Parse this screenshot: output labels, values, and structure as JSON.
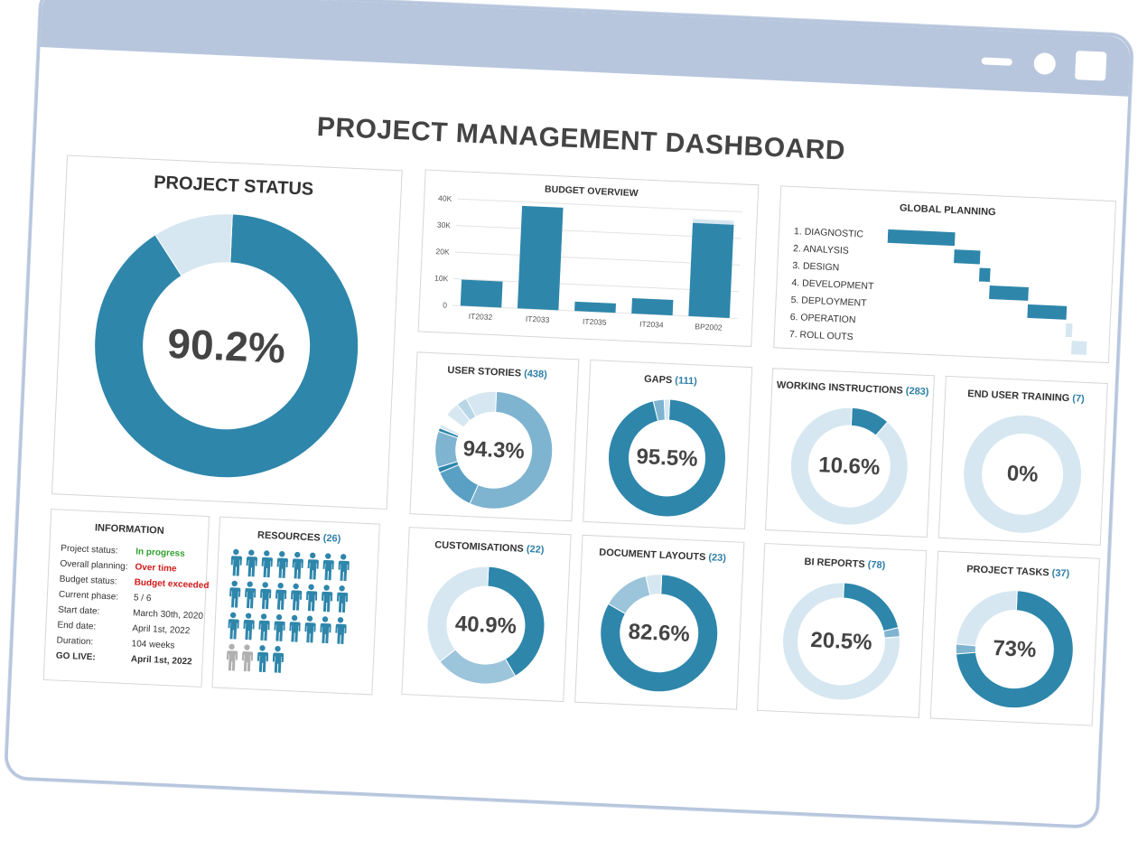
{
  "title": "PROJECT MANAGEMENT DASHBOARD",
  "window_controls": [
    "minimize-icon",
    "circle-icon",
    "maximize-icon"
  ],
  "colors": {
    "primary": "#2e86ab",
    "mid": "#7fb4d0",
    "light": "#d6e7f1",
    "grey": "#b0b0b0",
    "frame": "#b7c6dd"
  },
  "project_status": {
    "title": "PROJECT STATUS",
    "label": "90.2%"
  },
  "information": {
    "title": "INFORMATION",
    "rows": [
      {
        "label": "Project status:",
        "value": "In progress",
        "style": "ok"
      },
      {
        "label": "Overall planning:",
        "value": "Over time",
        "style": "bad"
      },
      {
        "label": "Budget status:",
        "value": "Budget exceeded",
        "style": "bad"
      },
      {
        "label": "Current phase:",
        "value": "5 / 6",
        "style": ""
      },
      {
        "label": "Start date:",
        "value": "March 30th, 2020",
        "style": ""
      },
      {
        "label": "End date:",
        "value": "April 1st, 2022",
        "style": ""
      },
      {
        "label": "Duration:",
        "value": "104 weeks",
        "style": ""
      },
      {
        "label": "GO LIVE:",
        "value": "April 1st, 2022",
        "style": "golive"
      }
    ]
  },
  "resources": {
    "title": "RESOURCES",
    "count": "(26)",
    "active": 24,
    "inactive": 2,
    "extra_active": 2
  },
  "global_planning": {
    "title": "GLOBAL PLANNING",
    "phases": [
      "1. DIAGNOSTIC",
      "2. ANALYSIS",
      "3. DESIGN",
      "4. DEVELOPMENT",
      "5. DEPLOYMENT",
      "6. OPERATION",
      "7. ROLL OUTS"
    ]
  },
  "chart_data": [
    {
      "id": "project_status",
      "type": "pie",
      "title": "PROJECT STATUS",
      "series": [
        {
          "values": [
            90.2,
            9.8
          ],
          "colors": [
            "#2e86ab",
            "#d6e7f1"
          ]
        }
      ],
      "center_label": "90.2%"
    },
    {
      "id": "budget",
      "type": "bar",
      "title": "BUDGET OVERVIEW",
      "categories": [
        "IT2032",
        "IT2033",
        "IT2035",
        "IT2034",
        "BP2002"
      ],
      "values": [
        9800,
        38500,
        3500,
        5800,
        35000
      ],
      "overlay_values": [
        0,
        0,
        0,
        0,
        36500
      ],
      "ylim": [
        0,
        40000
      ],
      "yticks": [
        0,
        10000,
        20000,
        30000,
        40000
      ],
      "ytick_labels": [
        "0",
        "10K",
        "20K",
        "30K",
        "40K"
      ],
      "grid": true
    },
    {
      "id": "gantt",
      "type": "bar",
      "title": "GLOBAL PLANNING",
      "categories": [
        "1. DIAGNOSTIC",
        "2. ANALYSIS",
        "3. DESIGN",
        "4. DEVELOPMENT",
        "5. DEPLOYMENT",
        "6. OPERATION",
        "7. ROLL OUTS"
      ],
      "start": [
        0,
        0.31,
        0.43,
        0.48,
        0.66,
        0.84,
        0.87
      ],
      "end": [
        0.31,
        0.43,
        0.48,
        0.66,
        0.84,
        0.87,
        0.94
      ],
      "light": [
        false,
        false,
        false,
        false,
        false,
        true,
        true
      ]
    },
    {
      "id": "user_stories",
      "type": "pie",
      "title": "USER STORIES",
      "count": "(438)",
      "center_label": "94.3%",
      "series": [
        {
          "values": [
            56,
            12,
            1.5,
            10,
            1,
            1,
            3,
            4,
            3,
            8.5
          ],
          "colors": [
            "#7fb4d0",
            "#5aa0c4",
            "#2e86ab",
            "#7fb4d0",
            "#2e86ab",
            "#d6e7f1",
            "#ffffff",
            "#d6e7f1",
            "#b9d6e6",
            "#d6e7f1"
          ]
        }
      ]
    },
    {
      "id": "gaps",
      "type": "pie",
      "title": "GAPS",
      "count": "(111)",
      "center_label": "95.5%",
      "series": [
        {
          "values": [
            95.5,
            3,
            1.5
          ],
          "colors": [
            "#2e86ab",
            "#7fb4d0",
            "#d6e7f1"
          ]
        }
      ]
    },
    {
      "id": "working_instructions",
      "type": "pie",
      "title": "WORKING INSTRUCTIONS",
      "count": "(283)",
      "center_label": "10.6%",
      "series": [
        {
          "values": [
            10.6,
            89.4
          ],
          "colors": [
            "#2e86ab",
            "#d6e7f1"
          ]
        }
      ]
    },
    {
      "id": "end_user_training",
      "type": "pie",
      "title": "END USER TRAINING",
      "count": "(7)",
      "center_label": "0%",
      "series": [
        {
          "values": [
            100
          ],
          "colors": [
            "#d6e7f1"
          ]
        }
      ]
    },
    {
      "id": "customisations",
      "type": "pie",
      "title": "CUSTOMISATIONS",
      "count": "(22)",
      "center_label": "40.9%",
      "series": [
        {
          "values": [
            40.9,
            22.7,
            36.4
          ],
          "colors": [
            "#2e86ab",
            "#9cc4da",
            "#d6e7f1"
          ]
        }
      ]
    },
    {
      "id": "document_layouts",
      "type": "pie",
      "title": "DOCUMENT LAYOUTS",
      "count": "(23)",
      "center_label": "82.6%",
      "series": [
        {
          "values": [
            82.6,
            13,
            4.4
          ],
          "colors": [
            "#2e86ab",
            "#9cc4da",
            "#d6e7f1"
          ]
        }
      ]
    },
    {
      "id": "bi_reports",
      "type": "pie",
      "title": "BI REPORTS",
      "count": "(78)",
      "center_label": "20.5%",
      "series": [
        {
          "values": [
            20.5,
            2.5,
            77
          ],
          "colors": [
            "#2e86ab",
            "#7fb4d0",
            "#d6e7f1"
          ]
        }
      ]
    },
    {
      "id": "project_tasks",
      "type": "pie",
      "title": "PROJECT TASKS",
      "count": "(37)",
      "center_label": "73%",
      "series": [
        {
          "values": [
            73,
            2.7,
            24.3
          ],
          "colors": [
            "#2e86ab",
            "#7fb4d0",
            "#d6e7f1"
          ]
        }
      ]
    }
  ]
}
